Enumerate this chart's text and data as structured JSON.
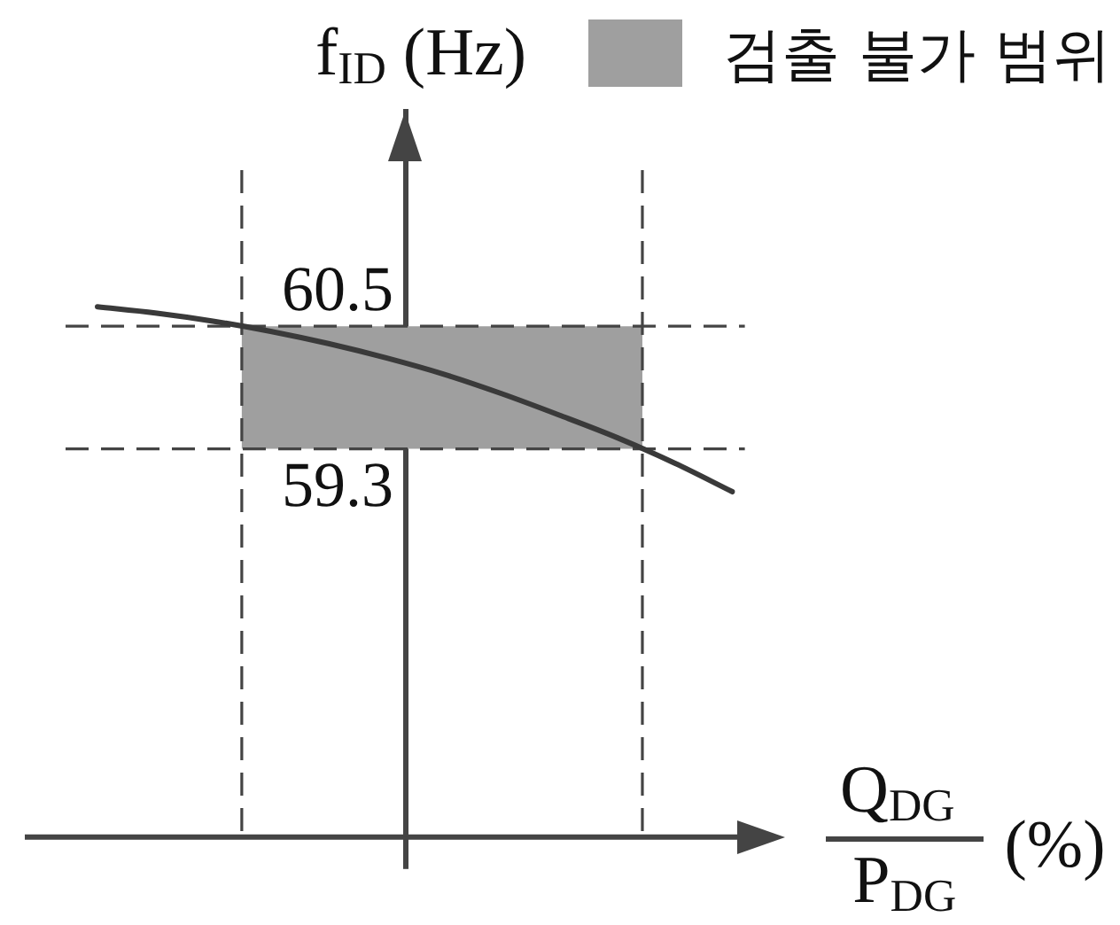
{
  "chart_data": {
    "type": "line",
    "ylabel": "f$_{ID}$ (Hz)",
    "xlabel": "Q$_{DG}$\nP$_{DG}$ (%)",
    "categories": [
      null,
      null,
      null,
      null,
      null,
      null,
      null,
      null,
      null,
      null,
      null,
      null
    ],
    "series": [
      {
        "color": "#3a3a3a",
        "values": [
          60.69,
          60.63,
          60.55,
          60.45,
          60.33,
          60.19,
          60.03,
          59.84,
          59.63,
          59.41,
          59.16,
          58.88
        ]
      }
    ],
    "ylim": [
      55.5,
      62.6
    ],
    "ref_lines": [
      {
        "axis": "y",
        "value": 60.5,
        "label": "60.5",
        "color": "#444444",
        "line_style": "dashed"
      },
      {
        "axis": "y",
        "value": 59.3,
        "label": "59.3",
        "color": "#444444",
        "line_style": "dashed"
      }
    ],
    "bands": [
      {
        "axis": "y",
        "from": 59.3,
        "to": 60.5,
        "label": "검출 불가 범위",
        "color": "#9f9f9f"
      }
    ],
    "legend": "top right",
    "tick_labels": false,
    "marker": "none"
  }
}
